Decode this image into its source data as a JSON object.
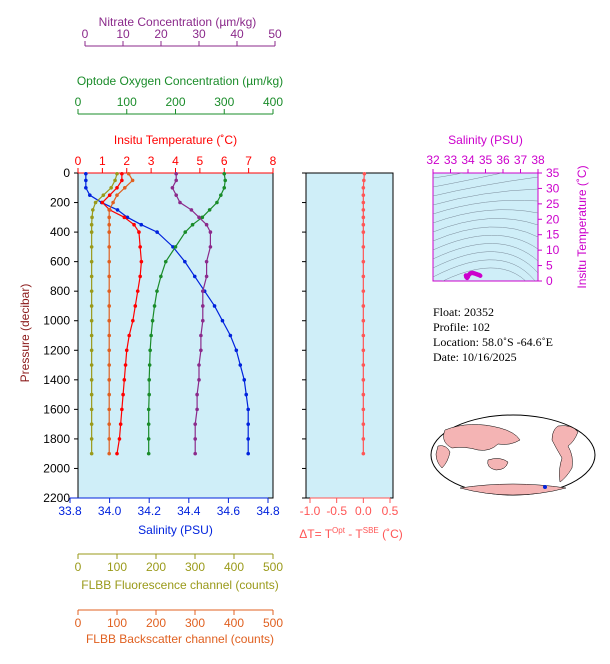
{
  "colors": {
    "nitrate": "#8b2a8b",
    "oxygen": "#1a8c2a",
    "temperature": "#ff0000",
    "salinity": "#0022dd",
    "fluorescence": "#9a9a1a",
    "backscatter": "#e06020",
    "delta": "#ff5555",
    "ts_points": "#cc00cc",
    "panel_bg": "#cfeef8",
    "land": "#f4b4b4"
  },
  "axes": {
    "nitrate": {
      "label": "Nitrate Concentration (µm/kg)",
      "ticks": [
        "0",
        "10",
        "20",
        "30",
        "40",
        "50"
      ],
      "range": [
        0,
        50
      ]
    },
    "oxygen": {
      "label": "Optode Oxygen Concentration (µm/kg)",
      "ticks": [
        "0",
        "100",
        "200",
        "300",
        "400"
      ],
      "range": [
        0,
        400
      ]
    },
    "temperature": {
      "label": "Insitu Temperature (˚C)",
      "ticks": [
        "0",
        "1",
        "2",
        "3",
        "4",
        "5",
        "6",
        "7",
        "8"
      ],
      "range": [
        0,
        8
      ]
    },
    "pressure": {
      "label": "Pressure (decibar)",
      "ticks": [
        "0",
        "200",
        "400",
        "600",
        "800",
        "1000",
        "1200",
        "1400",
        "1600",
        "1800",
        "2000",
        "2200"
      ],
      "range": [
        0,
        2200
      ]
    },
    "salinity": {
      "label": "Salinity (PSU)",
      "ticks": [
        "33.8",
        "34.0",
        "34.2",
        "34.4",
        "34.6",
        "34.8"
      ],
      "range": [
        33.8,
        34.8
      ]
    },
    "fluorescence": {
      "label": "FLBB Fluorescence channel (counts)",
      "ticks": [
        "0",
        "100",
        "200",
        "300",
        "400",
        "500"
      ],
      "range": [
        0,
        500
      ]
    },
    "backscatter": {
      "label": "FLBB Backscatter channel (counts)",
      "ticks": [
        "0",
        "100",
        "200",
        "300",
        "400",
        "500"
      ],
      "range": [
        0,
        500
      ]
    },
    "delta": {
      "label_prefix": "ΔT= T",
      "label_sup1": "Opt",
      "label_mid": " - T",
      "label_sup2": "SBE",
      "label_suffix": " (˚C)",
      "ticks": [
        "-1.0",
        "-0.5",
        "0.0",
        "0.5"
      ],
      "range": [
        -1,
        0.5
      ]
    },
    "ts_salinity": {
      "label": "Salinity (PSU)",
      "ticks": [
        "32",
        "33",
        "34",
        "35",
        "36",
        "37",
        "38"
      ],
      "range": [
        32,
        38
      ]
    },
    "ts_temperature": {
      "label": "Insitu Temperature (˚C)",
      "ticks": [
        "0",
        "5",
        "10",
        "15",
        "20",
        "25",
        "30",
        "35"
      ],
      "range": [
        0,
        35
      ]
    }
  },
  "info": {
    "float": "Float:  20352",
    "profile": "Profile:  102",
    "location": "Location:  58.0˚S  -64.6˚E",
    "date": "Date:  10/16/2025"
  },
  "chart_data": {
    "type": "line",
    "pressure": [
      5,
      50,
      100,
      150,
      200,
      250,
      300,
      350,
      400,
      500,
      600,
      700,
      800,
      900,
      1000,
      1100,
      1200,
      1300,
      1400,
      1500,
      1600,
      1700,
      1800,
      1900
    ],
    "series": [
      {
        "key": "salinity",
        "values": [
          33.88,
          33.88,
          33.88,
          33.9,
          33.96,
          34.04,
          34.09,
          34.16,
          34.24,
          34.32,
          34.38,
          34.43,
          34.48,
          34.53,
          34.57,
          34.61,
          34.64,
          34.66,
          34.68,
          34.69,
          34.7,
          34.7,
          34.7,
          34.7
        ]
      },
      {
        "key": "temperature",
        "values": [
          1.8,
          1.8,
          1.6,
          1.3,
          1.0,
          1.3,
          1.9,
          2.3,
          2.5,
          2.55,
          2.6,
          2.55,
          2.45,
          2.35,
          2.25,
          2.1,
          2.0,
          1.95,
          1.9,
          1.85,
          1.8,
          1.75,
          1.7,
          1.6
        ]
      },
      {
        "key": "oxygen",
        "values": [
          300,
          302,
          300,
          293,
          285,
          270,
          255,
          235,
          220,
          200,
          180,
          170,
          162,
          157,
          153,
          150,
          148,
          147,
          146,
          146,
          145,
          145,
          145,
          145
        ]
      },
      {
        "key": "nitrate",
        "values": [
          24,
          24,
          23,
          24,
          25,
          28,
          30,
          32,
          33,
          33,
          32,
          32,
          31,
          31,
          31,
          30.5,
          30.5,
          30,
          30,
          29.5,
          29.5,
          29,
          29,
          29
        ]
      },
      {
        "key": "fluorescence",
        "values": [
          100,
          95,
          85,
          65,
          45,
          38,
          36,
          35,
          35,
          35,
          35,
          35,
          35,
          35,
          35,
          35,
          35,
          35,
          35,
          35,
          35,
          35,
          35,
          35
        ]
      },
      {
        "key": "backscatter",
        "values": [
          130,
          140,
          120,
          100,
          90,
          80,
          80,
          80,
          80,
          80,
          80,
          80,
          80,
          80,
          80,
          80,
          80,
          80,
          80,
          80,
          80,
          80,
          80,
          80
        ]
      },
      {
        "key": "delta",
        "values": [
          0.02,
          0.01,
          0.0,
          0.0,
          0.0,
          0.0,
          0.0,
          0.0,
          0.0,
          0.0,
          0.0,
          0.0,
          0.0,
          0.0,
          0.0,
          0.0,
          0.0,
          0.0,
          0.0,
          0.0,
          0.0,
          0.0,
          0.0,
          0.0
        ]
      }
    ],
    "ts_points": {
      "salinity": [
        33.88,
        33.9,
        33.95,
        34.0,
        34.05,
        34.1,
        34.15,
        34.2,
        34.25,
        34.3,
        34.35,
        34.4,
        34.45,
        34.5,
        34.55,
        34.6,
        34.65,
        34.7
      ],
      "temperature": [
        1.8,
        1.3,
        1.0,
        1.4,
        2.0,
        2.3,
        2.5,
        2.6,
        2.6,
        2.55,
        2.5,
        2.4,
        2.3,
        2.2,
        2.1,
        2.0,
        1.9,
        1.7
      ]
    }
  }
}
